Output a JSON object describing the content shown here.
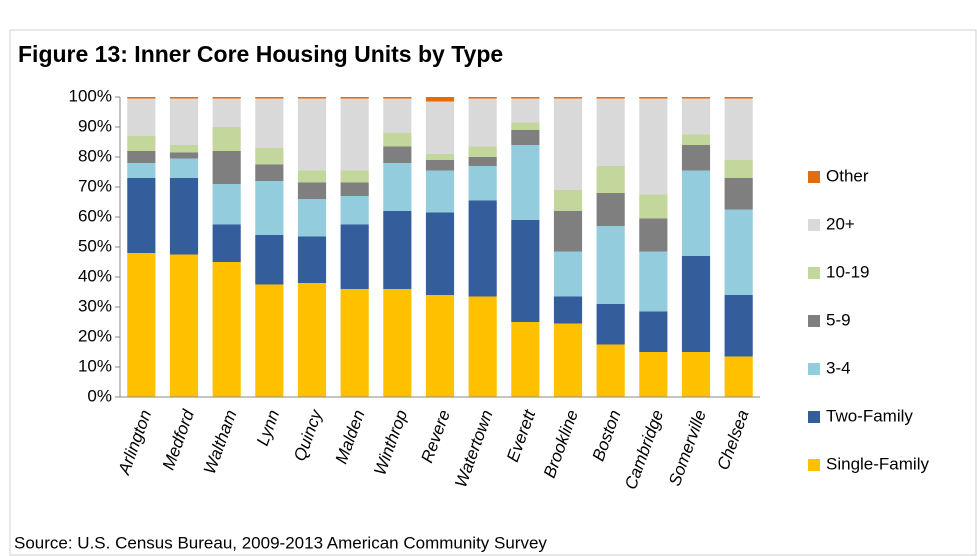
{
  "chart_data": {
    "type": "stacked_bar",
    "title": "Figure 13: Inner Core Housing Units by Type",
    "source": "Source: U.S. Census Bureau, 2009-2013 American Community Survey",
    "categories": [
      "Arlington",
      "Medford",
      "Waltham",
      "Lynn",
      "Quincy",
      "Malden",
      "Winthrop",
      "Revere",
      "Watertown",
      "Everett",
      "Brookline",
      "Boston",
      "Cambridge",
      "Somerville",
      "Chelsea"
    ],
    "series": [
      {
        "name": "Single-Family",
        "color": "#ffc000",
        "values": [
          48,
          47.5,
          45,
          37.5,
          38,
          36,
          36,
          34,
          33.5,
          25,
          24.5,
          17.5,
          15,
          15,
          13.5
        ]
      },
      {
        "name": "Two-Family",
        "color": "#345e9b",
        "values": [
          25,
          25.5,
          12.5,
          16.5,
          15.5,
          21.5,
          26,
          27.5,
          32,
          34,
          9,
          13.5,
          13.5,
          32,
          20.5
        ]
      },
      {
        "name": "3-4",
        "color": "#93cddd",
        "values": [
          5,
          6.5,
          13.5,
          18,
          12.5,
          9.5,
          16,
          14,
          11.5,
          25,
          15,
          26,
          20,
          28.5,
          28.5
        ]
      },
      {
        "name": "5-9",
        "color": "#7f7f7f",
        "values": [
          4,
          2,
          11,
          5.5,
          5.5,
          4.5,
          5.5,
          3.5,
          3,
          5,
          13.5,
          11,
          11,
          8.5,
          10.5
        ]
      },
      {
        "name": "10-19",
        "color": "#c3d69b",
        "values": [
          5,
          2.5,
          8,
          5.5,
          4,
          4,
          4.5,
          2,
          3.5,
          2.5,
          7,
          9,
          8,
          3.5,
          6
        ]
      },
      {
        "name": "20+",
        "color": "#d9d9d9",
        "values": [
          12.5,
          15.5,
          9.5,
          16.5,
          24,
          24,
          11.5,
          17.5,
          16,
          8,
          30.5,
          22.5,
          32,
          12,
          20.5
        ]
      },
      {
        "name": "Other",
        "color": "#e46c0a",
        "values": [
          0.5,
          0.5,
          0.5,
          0.5,
          0.5,
          0.5,
          0.5,
          1.5,
          0.5,
          0.5,
          0.5,
          0.5,
          0.5,
          0.5,
          0.5
        ]
      }
    ],
    "ylim": [
      0,
      100
    ],
    "yticks": [
      {
        "value": 0,
        "label": "0%"
      },
      {
        "value": 10,
        "label": "10%"
      },
      {
        "value": 20,
        "label": "20%"
      },
      {
        "value": 30,
        "label": "30%"
      },
      {
        "value": 40,
        "label": "40%"
      },
      {
        "value": 50,
        "label": "50%"
      },
      {
        "value": 60,
        "label": "60%"
      },
      {
        "value": 70,
        "label": "70%"
      },
      {
        "value": 80,
        "label": "80%"
      },
      {
        "value": 90,
        "label": "90%"
      },
      {
        "value": 100,
        "label": "100%"
      }
    ],
    "grid": false,
    "legend": "right"
  }
}
